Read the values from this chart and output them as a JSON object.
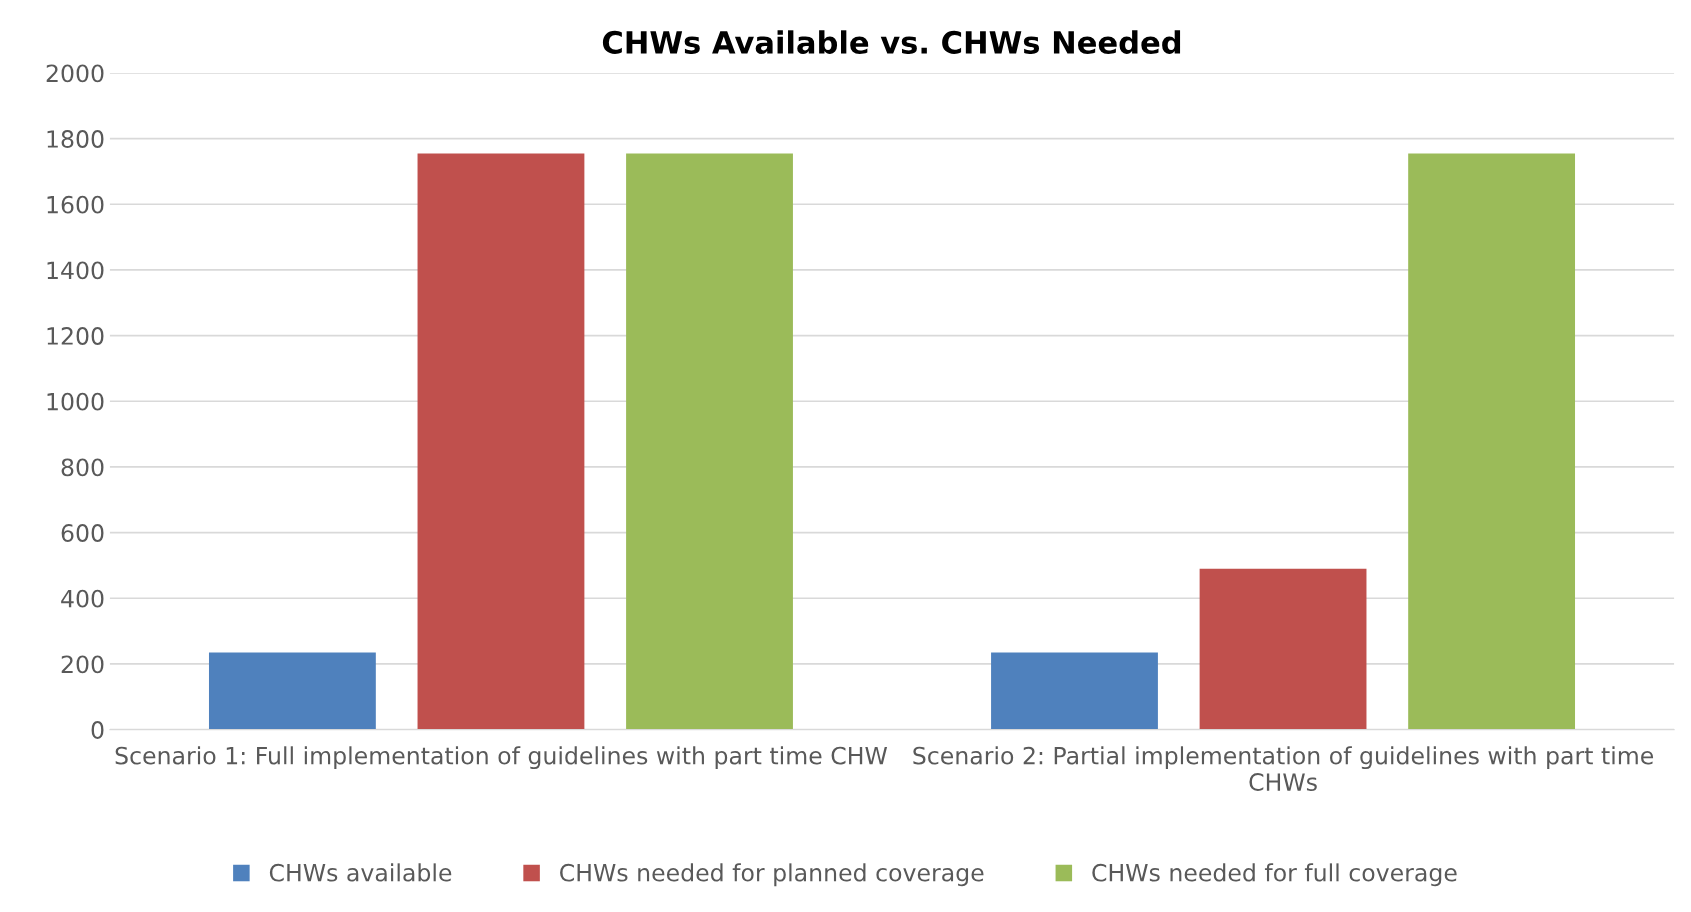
{
  "chart_data": {
    "type": "bar",
    "title": "CHWs Available vs. CHWs Needed",
    "categories": [
      "Scenario 1: Full implementation of guidelines with part time CHW",
      "Scenario 2: Partial implementation of guidelines with part time CHWs"
    ],
    "series": [
      {
        "name": "CHWs available",
        "color": "#4f81bd",
        "values": [
          235,
          235
        ]
      },
      {
        "name": "CHWs needed for planned coverage",
        "color": "#c0504d",
        "values": [
          1755,
          490
        ]
      },
      {
        "name": "CHWs needed for full coverage",
        "color": "#9bbb59",
        "values": [
          1755,
          1755
        ]
      }
    ],
    "ylim": [
      0,
      2000
    ],
    "yticks": [
      0,
      200,
      400,
      600,
      800,
      1000,
      1200,
      1400,
      1600,
      1800,
      2000
    ],
    "grid": "y",
    "legend": "bottom"
  }
}
